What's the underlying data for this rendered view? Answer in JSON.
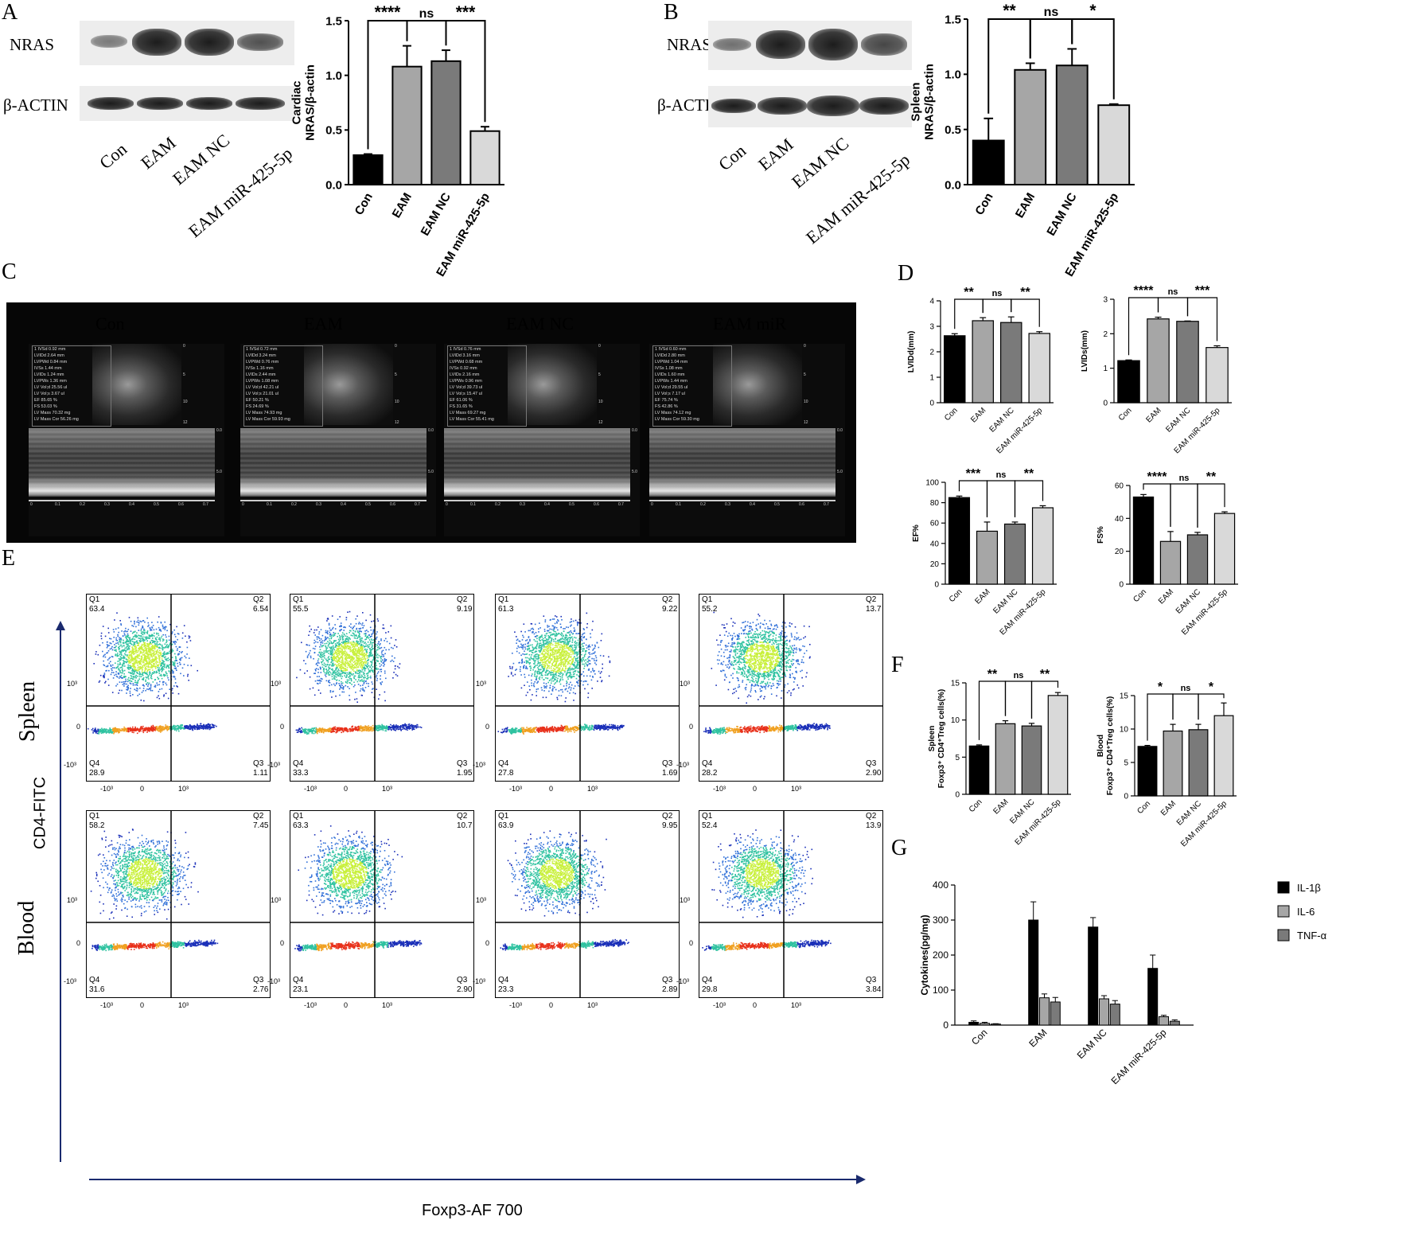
{
  "panel_labels": {
    "A": "A",
    "B": "B",
    "C": "C",
    "D": "D",
    "E": "E",
    "F": "F",
    "G": "G"
  },
  "blotA": {
    "protein": "NRAS",
    "control": "β-ACTIN",
    "lanes": [
      "Con",
      "EAM",
      "EAM NC",
      "EAM miR-425-5p"
    ]
  },
  "blotB": {
    "protein": "NRAS",
    "control": "β-ACTIN",
    "lanes": [
      "Con",
      "EAM",
      "EAM NC",
      "EAM miR-425-5p"
    ]
  },
  "echo": {
    "groups": [
      "Con",
      "EAM",
      "EAM NC",
      "EAM miR"
    ],
    "readouts": [
      [
        "1 IVSd 0.92 mm",
        "LVIDd 2.64 mm",
        "LVPWd 0.84 mm",
        "IVSs 1.44 mm",
        "LVIDs 1.24 mm",
        "LVPWs 1.36 mm",
        "LV Vol;d 25.56 ul",
        "LV Vol;s 3.67 ul",
        "EF 85.65 %",
        "FS 53.03 %",
        "LV Mass 70.32 mg",
        "LV Mass Cor 56.26 mg"
      ],
      [
        "1 IVSd 0.72 mm",
        "LVIDd 3.24 mm",
        "LVPWd 0.76 mm",
        "IVSs 1.16 mm",
        "LVIDs 2.44 mm",
        "LVPWs 1.08 mm",
        "LV Vol;d 42.21 ul",
        "LV Vol;s 21.01 ul",
        "EF 50.21 %",
        "FS 24.69 %",
        "LV Mass 74.93 mg",
        "LV Mass Cor 59.93 mg"
      ],
      [
        "1 IVSd 0.76 mm",
        "LVIDd 3.16 mm",
        "LVPWd 0.68 mm",
        "IVSs 0.92 mm",
        "LVIDs 2.16 mm",
        "LVPWs 0.96 mm",
        "LV Vol;d 39.73 ul",
        "LV Vol;s 15.47 ul",
        "EF 61.06 %",
        "FS 31.65 %",
        "LV Mass 69.27 mg",
        "LV Mass Cor 55.41 mg"
      ],
      [
        "1 IVSd 0.60 mm",
        "LVIDd 2.80 mm",
        "LVPWd 1.04 mm",
        "IVSs 1.08 mm",
        "LVIDs 1.60 mm",
        "LVPWs 1.44 mm",
        "LV Vol;d 29.55 ul",
        "LV Vol;s 7.17 ul",
        "EF 75.74 %",
        "FS 42.86 %",
        "LV Mass 74.12 mg",
        "LV Mass Cor 59.30 mg"
      ]
    ],
    "depth_ticks": [
      "0",
      "5",
      "10",
      "12"
    ],
    "mmode_ticks": [
      "0.0",
      "5.0"
    ],
    "time_ticks": [
      "0",
      "0.1",
      "0.2",
      "0.3",
      "0.4",
      "0.5",
      "0.6",
      "0.7"
    ]
  },
  "flow": {
    "rows": [
      "Spleen",
      "Blood"
    ],
    "y_axis_label": "CD4-FITC",
    "x_axis_label": "Foxp3-AF 700",
    "y_ticks": [
      "10³",
      "0",
      "-10³"
    ],
    "x_ticks": [
      "-10³",
      "0",
      "10³"
    ],
    "quadrant_names": [
      "Q1",
      "Q2",
      "Q3",
      "Q4"
    ],
    "spleen": [
      {
        "Q1": "63.4",
        "Q2": "6.54",
        "Q3": "1.11",
        "Q4": "28.9"
      },
      {
        "Q1": "55.5",
        "Q2": "9.19",
        "Q3": "1.95",
        "Q4": "33.3"
      },
      {
        "Q1": "61.3",
        "Q2": "9.22",
        "Q3": "1.69",
        "Q4": "27.8"
      },
      {
        "Q1": "55.2",
        "Q2": "13.7",
        "Q3": "2.90",
        "Q4": "28.2"
      }
    ],
    "blood": [
      {
        "Q1": "58.2",
        "Q2": "7.45",
        "Q3": "2.76",
        "Q4": "31.6"
      },
      {
        "Q1": "63.3",
        "Q2": "10.7",
        "Q3": "2.90",
        "Q4": "23.1"
      },
      {
        "Q1": "63.9",
        "Q2": "9.95",
        "Q3": "2.89",
        "Q4": "23.3"
      },
      {
        "Q1": "52.4",
        "Q2": "13.9",
        "Q3": "3.84",
        "Q4": "29.8"
      }
    ]
  },
  "colors": {
    "con": "#000000",
    "eam": "#a6a6a6",
    "eamnc": "#7a7a7a",
    "mir": "#d9d9d9"
  },
  "chart_data": [
    {
      "id": "A",
      "type": "bar",
      "categories": [
        "Con",
        "EAM",
        "EAM NC",
        "EAM miR-425-5p"
      ],
      "values": [
        0.27,
        1.08,
        1.13,
        0.49
      ],
      "errors": [
        0.01,
        0.19,
        0.1,
        0.04
      ],
      "ylabel": "Cardiac NRAS/β-actin",
      "ylim": [
        0,
        1.5
      ],
      "yticks": [
        "0.0",
        "0.5",
        "1.0",
        "1.5"
      ],
      "sig": [
        "****",
        "ns",
        "***"
      ]
    },
    {
      "id": "B",
      "type": "bar",
      "categories": [
        "Con",
        "EAM",
        "EAM NC",
        "EAM miR-425-5p"
      ],
      "values": [
        0.4,
        1.04,
        1.08,
        0.72
      ],
      "errors": [
        0.2,
        0.06,
        0.15,
        0.01
      ],
      "ylabel": "Spleen NRAS/β-actin",
      "ylim": [
        0,
        1.5
      ],
      "yticks": [
        "0.0",
        "0.5",
        "1.0",
        "1.5"
      ],
      "sig": [
        "**",
        "ns",
        "*"
      ]
    },
    {
      "id": "D1",
      "type": "bar",
      "categories": [
        "Con",
        "EAM",
        "EAM NC",
        "EAM miR-425-5p"
      ],
      "values": [
        2.63,
        3.22,
        3.15,
        2.72
      ],
      "errors": [
        0.08,
        0.12,
        0.22,
        0.07
      ],
      "ylabel": "LVIDd(mm)",
      "ylim": [
        0,
        4
      ],
      "yticks": [
        "0",
        "1",
        "2",
        "3",
        "4"
      ],
      "sig": [
        "**",
        "ns",
        "**"
      ]
    },
    {
      "id": "D2",
      "type": "bar",
      "categories": [
        "Con",
        "EAM",
        "EAM NC",
        "EAM miR-425-5p"
      ],
      "values": [
        1.22,
        2.43,
        2.36,
        1.6
      ],
      "errors": [
        0.02,
        0.05,
        0.01,
        0.05
      ],
      "ylabel": "LVIDs(mm)",
      "ylim": [
        0,
        3
      ],
      "yticks": [
        "0",
        "1",
        "2",
        "3"
      ],
      "sig": [
        "****",
        "ns",
        "***"
      ]
    },
    {
      "id": "D3",
      "type": "bar",
      "categories": [
        "Con",
        "EAM",
        "EAM NC",
        "EAM miR-425-5p"
      ],
      "values": [
        85,
        52,
        59,
        75
      ],
      "errors": [
        1.5,
        9,
        2,
        2
      ],
      "ylabel": "EF%",
      "ylim": [
        0,
        100
      ],
      "yticks": [
        "0",
        "20",
        "40",
        "60",
        "80",
        "100"
      ],
      "sig": [
        "***",
        "ns",
        "**"
      ]
    },
    {
      "id": "D4",
      "type": "bar",
      "categories": [
        "Con",
        "EAM",
        "EAM NC",
        "EAM miR-425-5p"
      ],
      "values": [
        53,
        26,
        30,
        43
      ],
      "errors": [
        1.5,
        6,
        1.5,
        1
      ],
      "ylabel": "FS%",
      "ylim": [
        0,
        60
      ],
      "yticks": [
        "0",
        "20",
        "40",
        "60"
      ],
      "sig": [
        "****",
        "ns",
        "**"
      ]
    },
    {
      "id": "F1",
      "type": "bar",
      "categories": [
        "Con",
        "EAM",
        "EAM NC",
        "EAM miR-425-5p"
      ],
      "values": [
        6.5,
        9.5,
        9.2,
        13.3
      ],
      "errors": [
        0.15,
        0.4,
        0.35,
        0.4
      ],
      "ylabel": "Spleen Foxp3⁺ CD4⁺Treg cells(%)",
      "ylim": [
        0,
        15
      ],
      "yticks": [
        "0",
        "5",
        "10",
        "15"
      ],
      "sig": [
        "**",
        "ns",
        "**"
      ]
    },
    {
      "id": "F2",
      "type": "bar",
      "categories": [
        "Con",
        "EAM",
        "EAM NC",
        "EAM miR-425-5p"
      ],
      "values": [
        7.4,
        9.7,
        9.9,
        12.0
      ],
      "errors": [
        0.15,
        1.0,
        0.8,
        1.9
      ],
      "ylabel": "Blood Foxp3⁺ CD4⁺Treg cells(%)",
      "ylim": [
        0,
        15
      ],
      "yticks": [
        "0",
        "5",
        "10",
        "15"
      ],
      "sig": [
        "*",
        "ns",
        "*"
      ]
    },
    {
      "id": "G",
      "type": "bar",
      "categories": [
        "Con",
        "EAM",
        "EAM NC",
        "EAM miR-425-5p"
      ],
      "series": [
        {
          "name": "IL-1β",
          "values": [
            8,
            300,
            280,
            162
          ],
          "errors": [
            4,
            52,
            27,
            38
          ]
        },
        {
          "name": "IL-6",
          "values": [
            5,
            78,
            75,
            24
          ],
          "errors": [
            3,
            11,
            9,
            4
          ]
        },
        {
          "name": "TNF-α",
          "values": [
            3,
            66,
            60,
            11
          ],
          "errors": [
            1,
            13,
            10,
            4
          ]
        }
      ],
      "ylabel": "Cytokines(pg/mg)",
      "ylim": [
        0,
        400
      ],
      "yticks": [
        "0",
        "100",
        "200",
        "300",
        "400"
      ],
      "legend": "top-right"
    }
  ]
}
